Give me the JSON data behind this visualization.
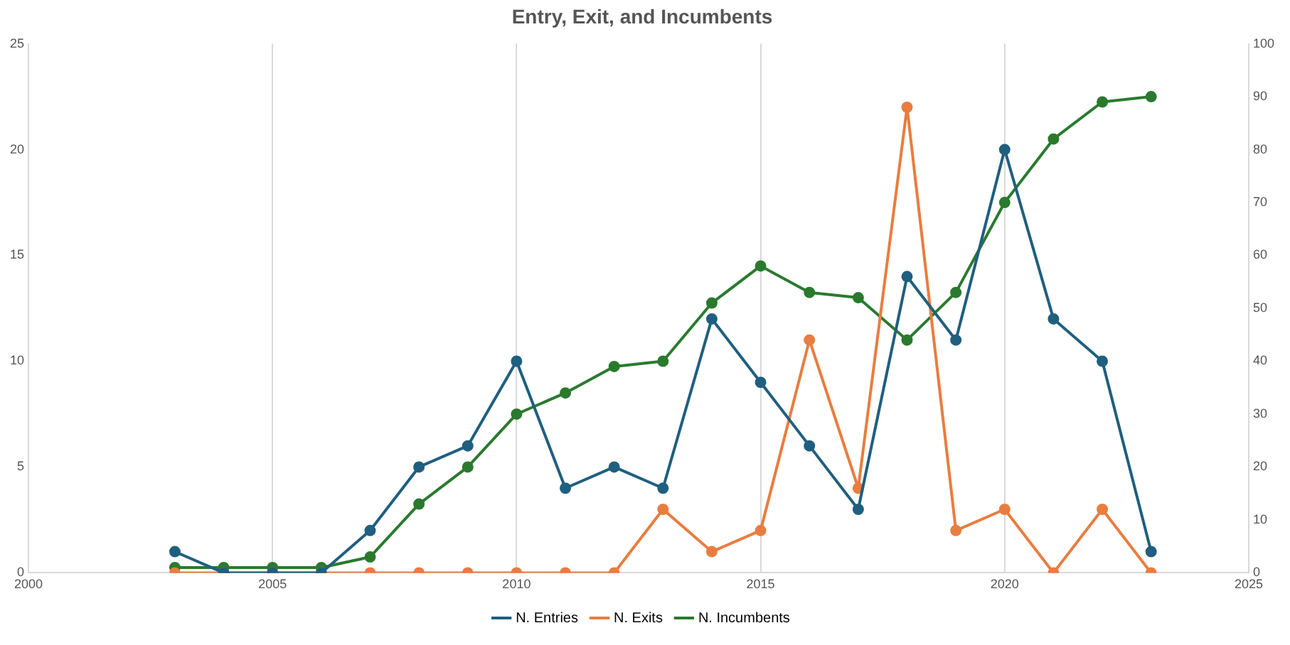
{
  "chart_data": {
    "type": "line",
    "title": "Entry, Exit, and Incumbents",
    "x": [
      2003,
      2004,
      2005,
      2006,
      2007,
      2008,
      2009,
      2010,
      2011,
      2012,
      2013,
      2014,
      2015,
      2016,
      2017,
      2018,
      2019,
      2020,
      2021,
      2022,
      2023
    ],
    "series": [
      {
        "name": "N. Entries",
        "color": "#1f5f7f",
        "values": [
          1,
          0,
          0,
          0,
          2,
          5,
          6,
          10,
          4,
          5,
          4,
          12,
          9,
          6,
          3,
          14,
          11,
          20,
          12,
          10,
          1
        ]
      },
      {
        "name": "N. Exits",
        "color": "#e97d3f",
        "values": [
          0,
          0,
          0,
          0,
          0,
          0,
          0,
          0,
          0,
          0,
          3,
          1,
          2,
          11,
          4,
          22,
          2,
          3,
          0,
          3,
          0
        ]
      },
      {
        "name": "N. Incumbents",
        "color": "#2a7a2e",
        "axis": "y2",
        "values": [
          1,
          1,
          1,
          1,
          3,
          13,
          20,
          30,
          34,
          39,
          40,
          51,
          58,
          53,
          52,
          44,
          53,
          70,
          82,
          89,
          90
        ]
      }
    ],
    "xlim": [
      2000,
      2025
    ],
    "xticks": [
      2000,
      2005,
      2010,
      2015,
      2020,
      2025
    ],
    "ylim": [
      0,
      25
    ],
    "yticks": [
      0,
      5,
      10,
      15,
      20,
      25
    ],
    "y2lim": [
      0,
      100
    ],
    "y2ticks": [
      0,
      10,
      20,
      30,
      40,
      50,
      60,
      70,
      80,
      90,
      100
    ],
    "grid": "x",
    "legend": "bottom",
    "marker": "circle",
    "line_style": "solid"
  }
}
